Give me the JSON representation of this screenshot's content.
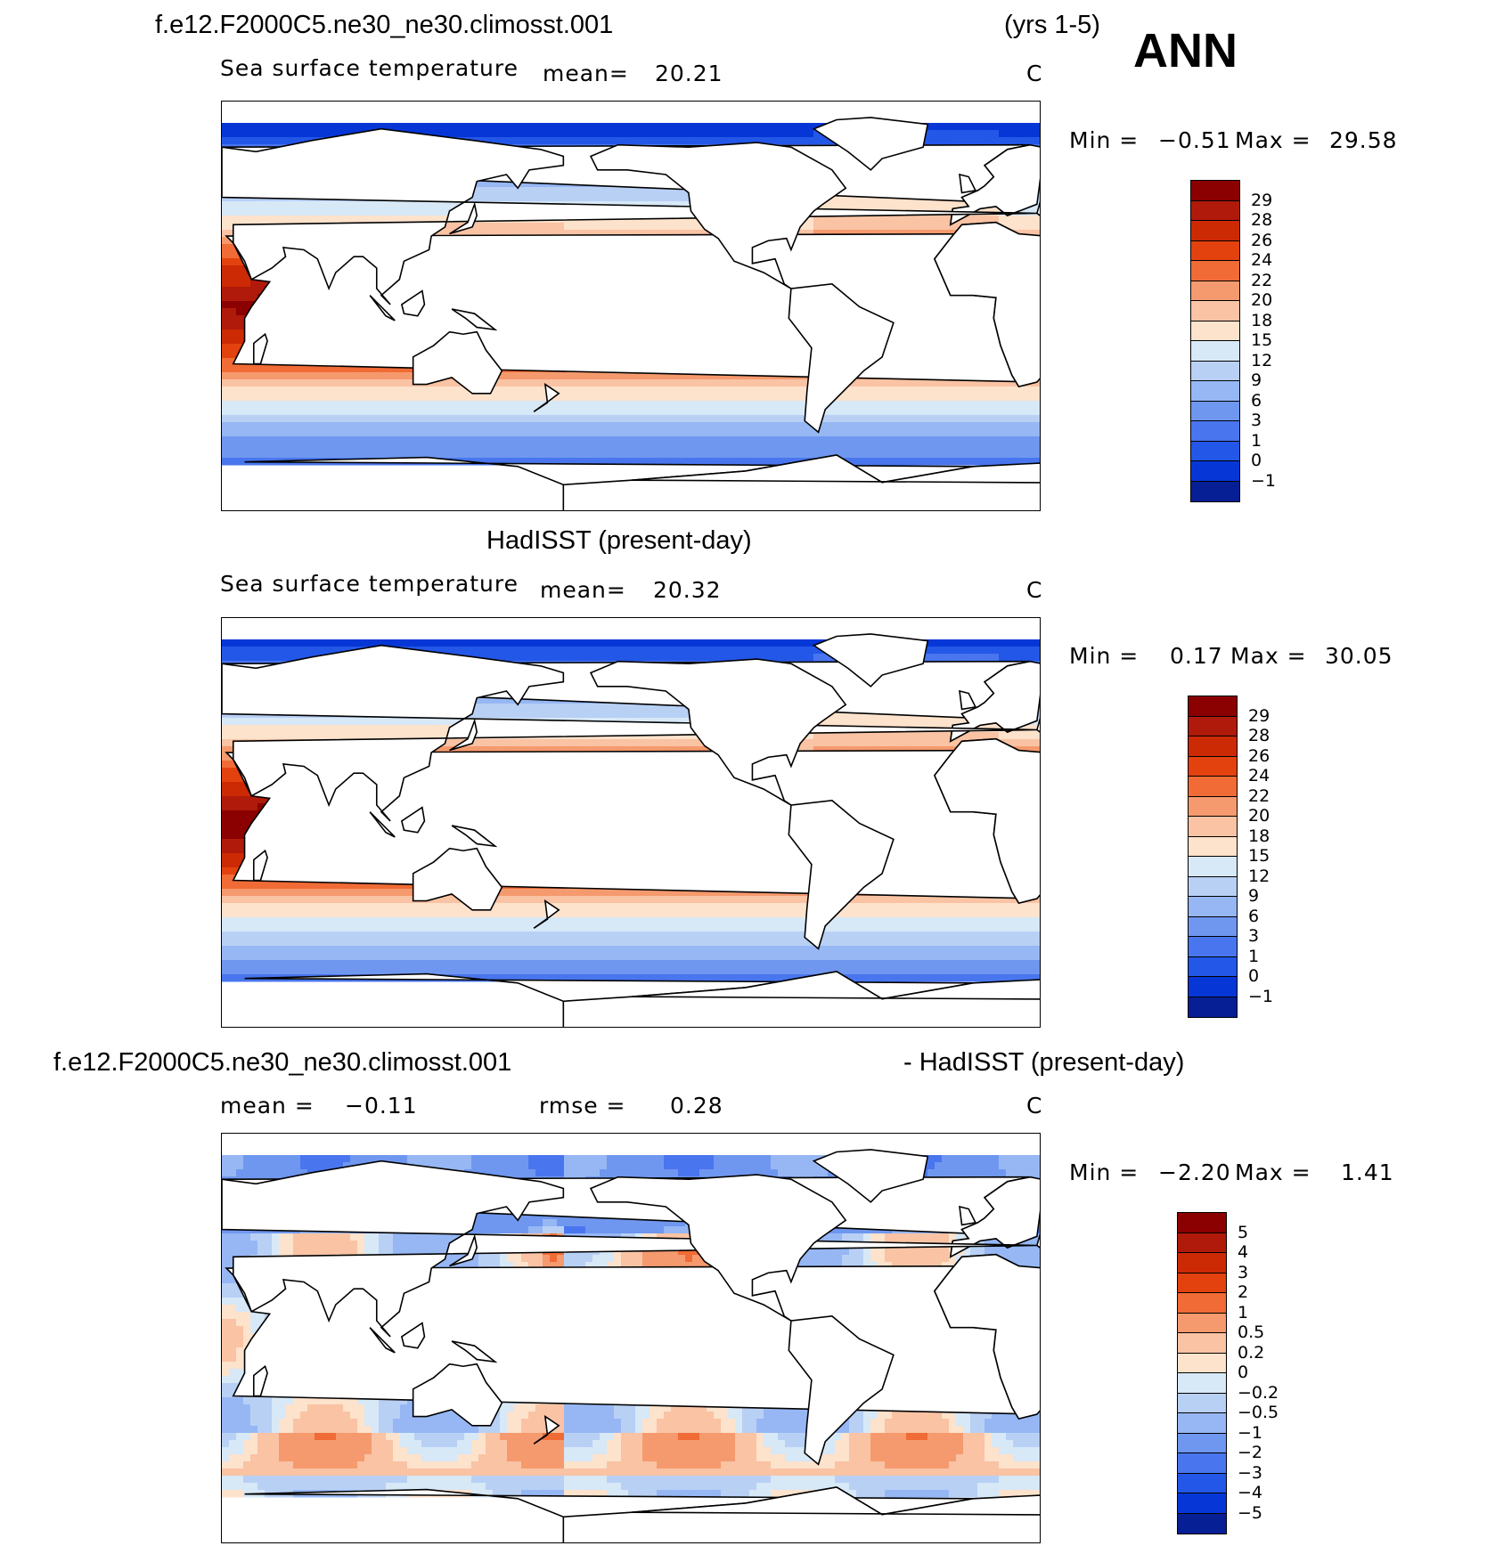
{
  "header": {
    "case_name": "f.e12.F2000C5.ne30_ne30.climosst.001",
    "years": "(yrs 1-5)",
    "season": "ANN"
  },
  "panels": [
    {
      "title": "",
      "variable": "Sea surface temperature",
      "stat_label": "mean=",
      "stat_value": "20.21",
      "units": "C",
      "min_label": "Min =",
      "min_value": "−0.51",
      "max_label": "Max =",
      "max_value": "29.58",
      "colorbar": {
        "labels": [
          "29",
          "28",
          "26",
          "24",
          "22",
          "20",
          "18",
          "15",
          "12",
          "9",
          "6",
          "3",
          "1",
          "0",
          "−1"
        ],
        "colors": [
          "#8b0000",
          "#b01a0a",
          "#cc2a05",
          "#e3420f",
          "#f06b35",
          "#f59a6e",
          "#f9c3a4",
          "#fde2cc",
          "#d7e8f7",
          "#b9d0f5",
          "#96b7f4",
          "#6f97ef",
          "#4976ee",
          "#2357e8",
          "#0637d6",
          "#061f95"
        ]
      },
      "field": "sst_model"
    },
    {
      "title": "HadISST (present-day)",
      "variable": "Sea surface temperature",
      "stat_label": "mean=",
      "stat_value": "20.32",
      "units": "C",
      "min_label": "Min =",
      "min_value": "0.17",
      "max_label": "Max =",
      "max_value": "30.05",
      "colorbar": {
        "labels": [
          "29",
          "28",
          "26",
          "24",
          "22",
          "20",
          "18",
          "15",
          "12",
          "9",
          "6",
          "3",
          "1",
          "0",
          "−1"
        ],
        "colors": [
          "#8b0000",
          "#b01a0a",
          "#cc2a05",
          "#e3420f",
          "#f06b35",
          "#f59a6e",
          "#f9c3a4",
          "#fde2cc",
          "#d7e8f7",
          "#b9d0f5",
          "#96b7f4",
          "#6f97ef",
          "#4976ee",
          "#2357e8",
          "#0637d6",
          "#061f95"
        ]
      },
      "field": "sst_obs"
    },
    {
      "title_left": "f.e12.F2000C5.ne30_ne30.climosst.001",
      "title_right": "- HadISST (present-day)",
      "stat_label": "mean =",
      "stat_value": "−0.11",
      "stat2_label": "rmse =",
      "stat2_value": "0.28",
      "units": "C",
      "min_label": "Min =",
      "min_value": "−2.20",
      "max_label": "Max =",
      "max_value": "1.41",
      "colorbar": {
        "labels": [
          "5",
          "4",
          "3",
          "2",
          "1",
          "0.5",
          "0.2",
          "0",
          "−0.2",
          "−0.5",
          "−1",
          "−2",
          "−3",
          "−4",
          "−5"
        ],
        "colors": [
          "#8b0000",
          "#b01a0a",
          "#cc2a05",
          "#e3420f",
          "#f06b35",
          "#f59a6e",
          "#f9c3a4",
          "#fde2cc",
          "#d7e8f7",
          "#b9d0f5",
          "#96b7f4",
          "#6f97ef",
          "#4976ee",
          "#2357e8",
          "#0637d6",
          "#061f95"
        ]
      },
      "field": "sst_diff"
    }
  ]
}
